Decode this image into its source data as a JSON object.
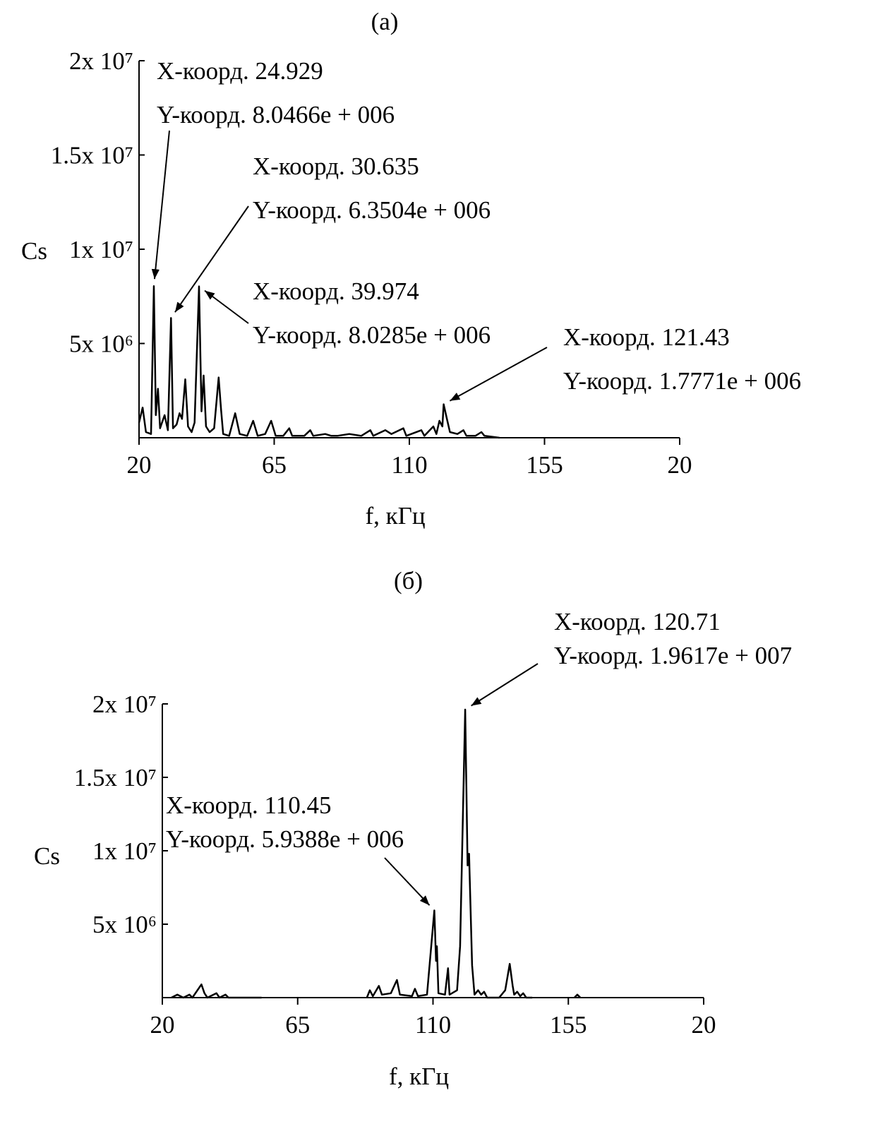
{
  "chart_data": [
    {
      "type": "line",
      "title": "(a)",
      "xlabel": "f, кГц",
      "ylabel": "Cs",
      "color": "#000000",
      "xlim": [
        20,
        200
      ],
      "xticks": [
        20,
        65,
        110,
        155,
        {
          "value": 200,
          "label": "20"
        }
      ],
      "ylim": [
        0,
        20000000
      ],
      "yticks": [
        {
          "value": 5000000,
          "label": "5x 10⁶"
        },
        {
          "value": 10000000,
          "label": "1x 10⁷"
        },
        {
          "value": 15000000,
          "label": "1.5x 10⁷"
        },
        {
          "value": 20000000,
          "label": "2x 10⁷"
        }
      ],
      "x": [
        20,
        21.2,
        22.3,
        24.0,
        24.929,
        25.6,
        26.3,
        27.0,
        28.5,
        29.6,
        30.635,
        31.3,
        32.5,
        33.5,
        34.3,
        35.4,
        36.3,
        37.5,
        38.5,
        39.974,
        40.8,
        41.5,
        42.3,
        43.5,
        45,
        46.5,
        47.3,
        48,
        50,
        52,
        53.5,
        56,
        58,
        59.5,
        62,
        64,
        65.5,
        68,
        70,
        71,
        75,
        77,
        78,
        82,
        84,
        86,
        90,
        94,
        97,
        98,
        102,
        104,
        108,
        109,
        114,
        115,
        118,
        119,
        120,
        121,
        121.43,
        122.5,
        123.5,
        126,
        128,
        129,
        132,
        134,
        135,
        140
      ],
      "values": [
        800000,
        1600000,
        300000,
        200000,
        8046600,
        1200000,
        2600000,
        500000,
        1200000,
        400000,
        6350400,
        500000,
        700000,
        1300000,
        1000000,
        3100000,
        600000,
        300000,
        800000,
        8028500,
        1400000,
        3300000,
        600000,
        300000,
        500000,
        3200000,
        1500000,
        200000,
        100000,
        1300000,
        200000,
        100000,
        900000,
        100000,
        200000,
        900000,
        100000,
        100000,
        500000,
        100000,
        100000,
        400000,
        100000,
        200000,
        100000,
        100000,
        200000,
        100000,
        400000,
        100000,
        400000,
        200000,
        500000,
        100000,
        400000,
        100000,
        600000,
        200000,
        900000,
        600000,
        1777100,
        1000000,
        300000,
        200000,
        400000,
        100000,
        100000,
        300000,
        100000,
        0
      ],
      "annotations": [
        {
          "lines": [
            "X-коорд. 24.929",
            "Y-коорд. 8.0466e + 006"
          ],
          "x": 24.929,
          "y": 8046600
        },
        {
          "lines": [
            "X-коорд. 30.635",
            "Y-коорд. 6.3504e + 006"
          ],
          "x": 30.635,
          "y": 6350400
        },
        {
          "lines": [
            "X-коорд. 39.974",
            "Y-коорд. 8.0285e + 006"
          ],
          "x": 39.974,
          "y": 8028500
        },
        {
          "lines": [
            "X-коорд. 121.43",
            "Y-коорд. 1.7771e + 006"
          ],
          "x": 121.43,
          "y": 1777100
        }
      ]
    },
    {
      "type": "line",
      "title": "(б)",
      "xlabel": "f, кГц",
      "ylabel": "Cs",
      "color": "#000000",
      "xlim": [
        20,
        200
      ],
      "xticks": [
        20,
        65,
        110,
        155,
        {
          "value": 200,
          "label": "20"
        }
      ],
      "ylim": [
        0,
        20000000
      ],
      "yticks": [
        {
          "value": 5000000,
          "label": "5x 10⁶"
        },
        {
          "value": 10000000,
          "label": "1x 10⁷"
        },
        {
          "value": 15000000,
          "label": "1.5x 10⁷"
        },
        {
          "value": 20000000,
          "label": "2x 10⁷"
        }
      ],
      "x": [
        23,
        25,
        27,
        29,
        30,
        33,
        34,
        35,
        38,
        39,
        41,
        42,
        53,
        null,
        88,
        89,
        90,
        92,
        93,
        96,
        98,
        99,
        103,
        104,
        105,
        108,
        110.45,
        111,
        111.3,
        111.8,
        114,
        115,
        115.5,
        118,
        119,
        120.71,
        121.5,
        122,
        123,
        123.8,
        125,
        126,
        127,
        128,
        132,
        134,
        135.5,
        136.5,
        137,
        138,
        139,
        140,
        141,
        143,
        null,
        157,
        158,
        159
      ],
      "values": [
        0,
        200000,
        0,
        200000,
        0,
        900000,
        300000,
        0,
        300000,
        0,
        200000,
        0,
        0,
        null,
        0,
        500000,
        100000,
        800000,
        200000,
        300000,
        1200000,
        200000,
        100000,
        600000,
        100000,
        200000,
        5938800,
        2500000,
        3500000,
        300000,
        200000,
        2000000,
        200000,
        500000,
        3500000,
        19617000,
        9000000,
        9800000,
        2200000,
        200000,
        500000,
        200000,
        400000,
        0,
        0,
        500000,
        2300000,
        800000,
        200000,
        400000,
        100000,
        300000,
        0,
        0,
        null,
        0,
        200000,
        0
      ],
      "annotations": [
        {
          "lines": [
            "X-коорд. 110.45",
            "Y-коорд. 5.9388e + 006"
          ],
          "x": 110.45,
          "y": 5938800
        },
        {
          "lines": [
            "X-коорд. 120.71",
            "Y-коорд. 1.9617e + 007"
          ],
          "x": 120.71,
          "y": 19617000
        }
      ]
    }
  ]
}
